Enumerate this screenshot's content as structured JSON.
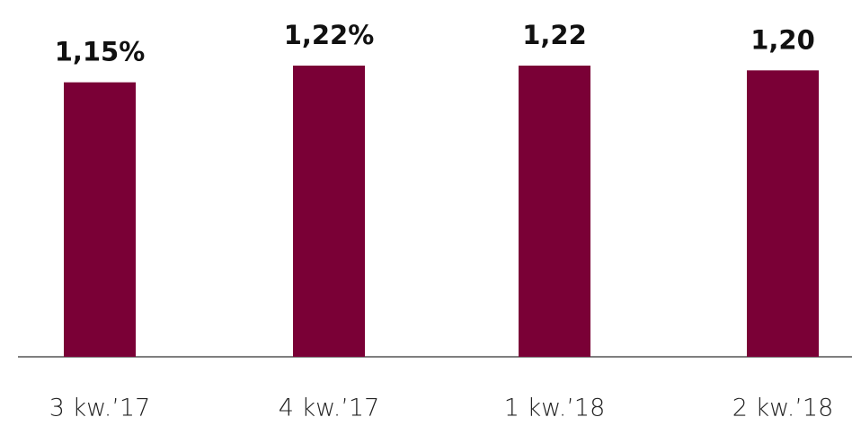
{
  "chart_data": {
    "type": "bar",
    "categories": [
      "3 kw.’17",
      "4 kw.’17",
      "1 kw.’18",
      "2 kw.’18"
    ],
    "values": [
      1.15,
      1.22,
      1.22,
      1.2
    ],
    "value_labels": [
      "1,15%",
      "1,22%",
      "1,22",
      "1,20"
    ],
    "color": "#7a0036"
  }
}
